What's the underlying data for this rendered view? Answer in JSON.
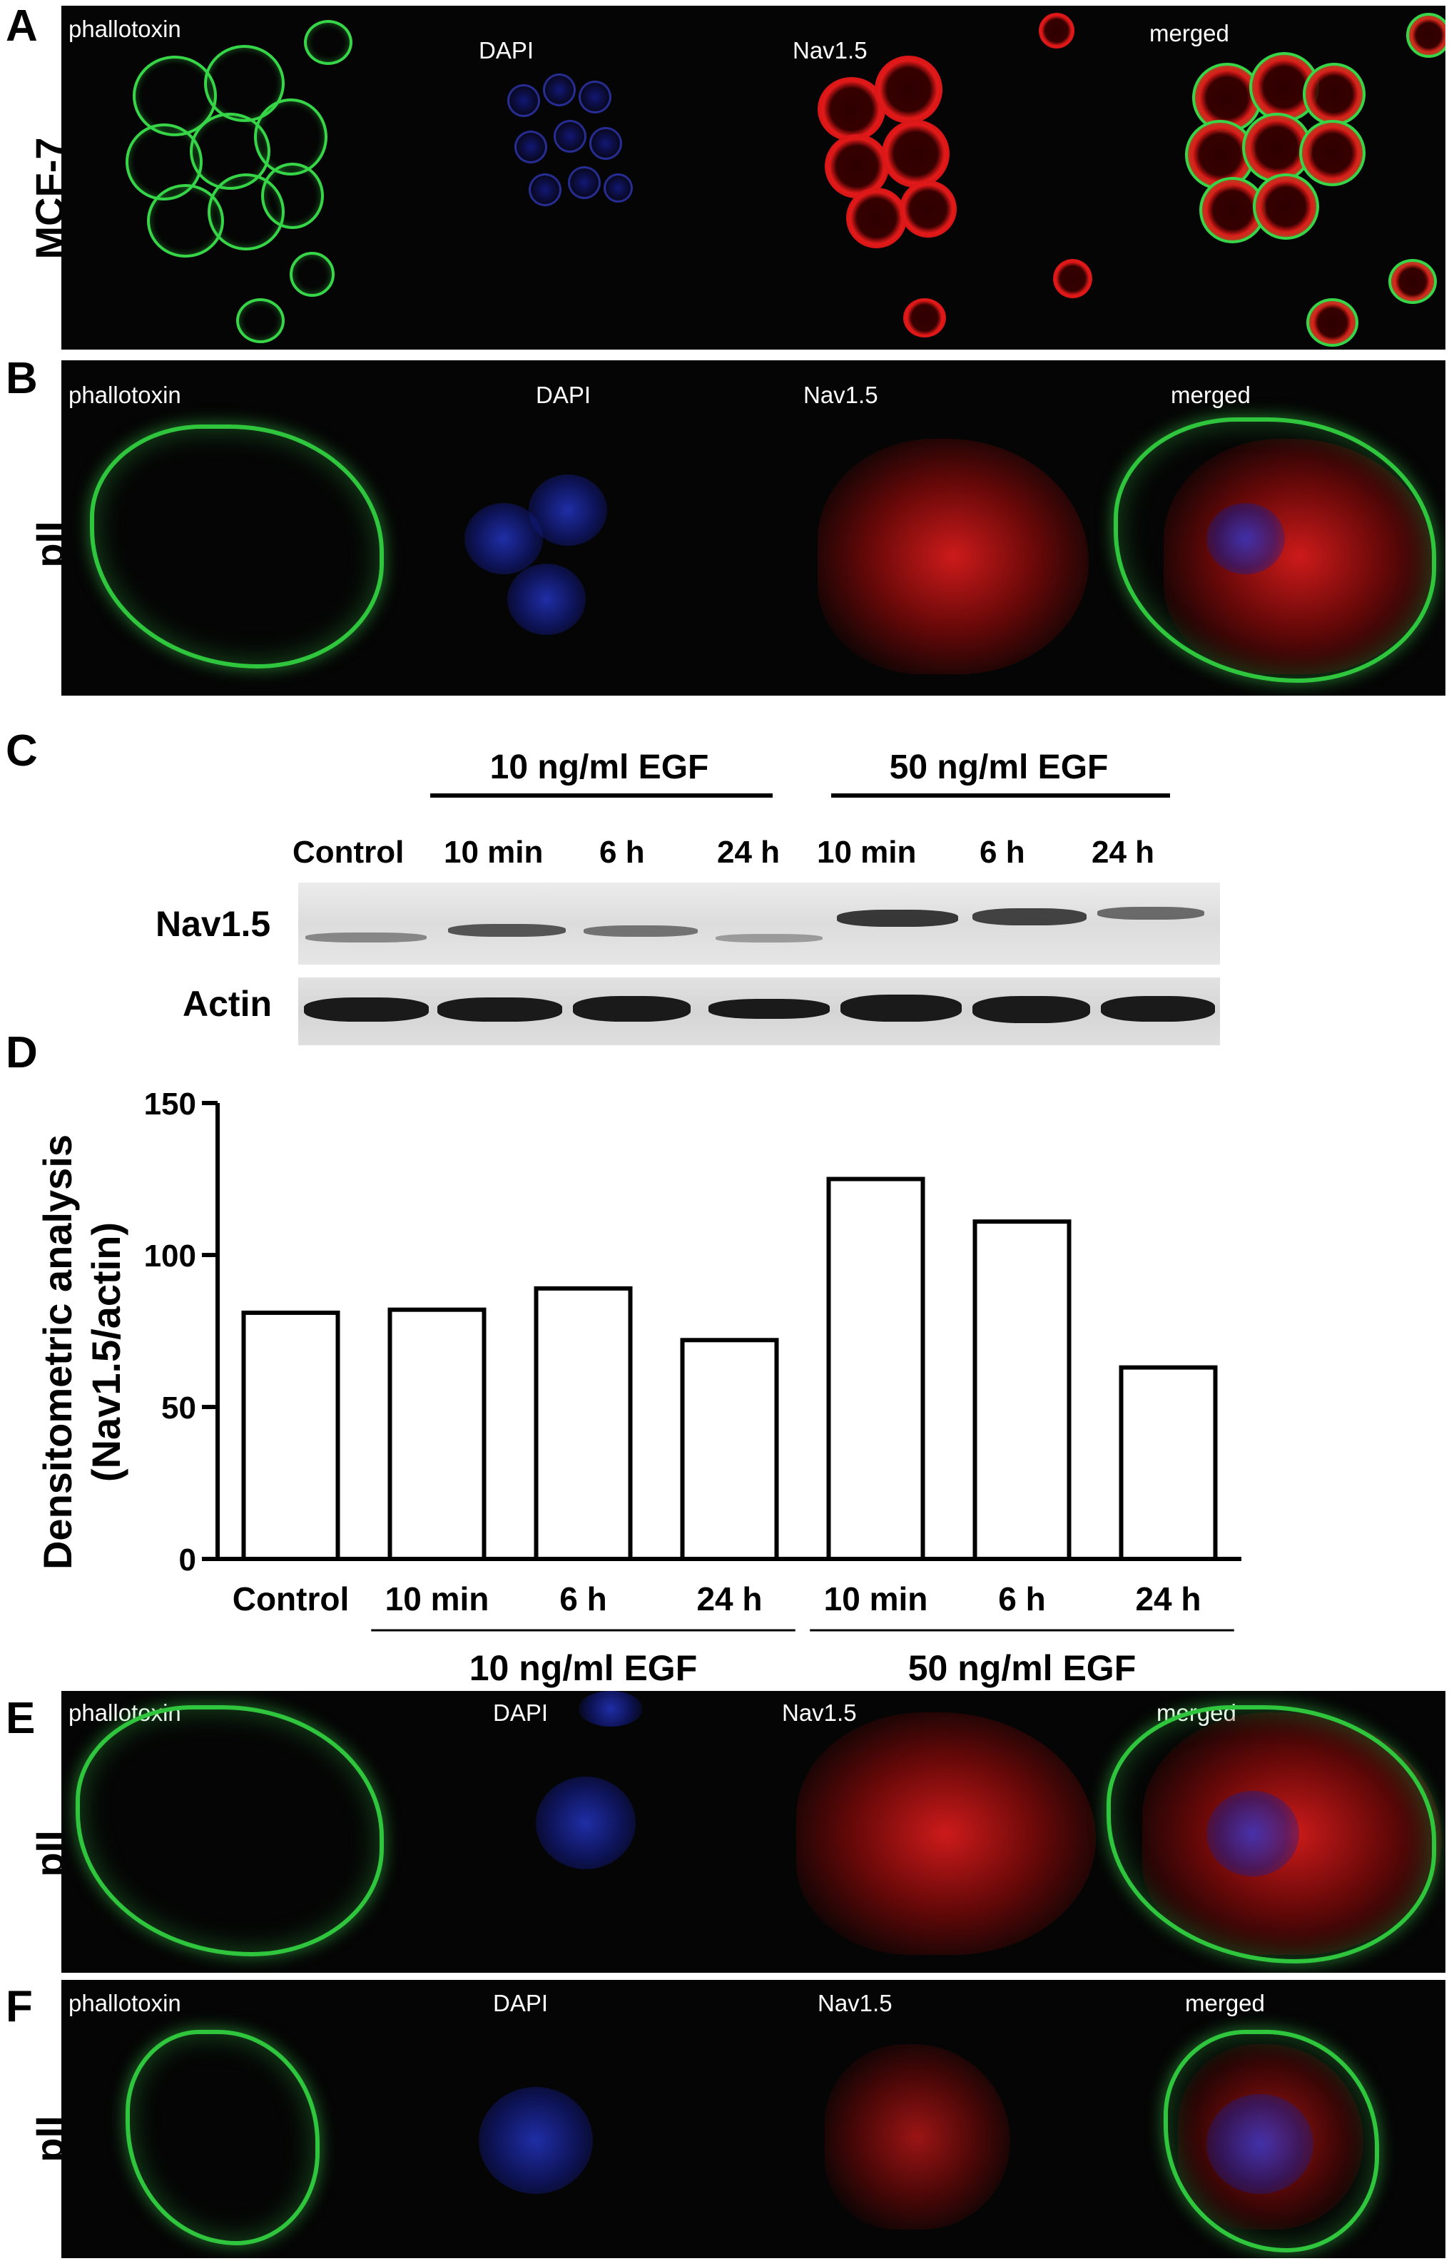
{
  "panels": {
    "A": {
      "letter": "A",
      "row_label": "MCF-7",
      "channels": [
        "phallotoxin",
        "DAPI",
        "Nav1.5",
        "merged"
      ]
    },
    "B": {
      "letter": "B",
      "row_label": "pII",
      "channels": [
        "phallotoxin",
        "DAPI",
        "Nav1.5",
        "merged"
      ]
    },
    "E": {
      "letter": "E",
      "row_label": "pII",
      "channels": [
        "phallotoxin",
        "DAPI",
        "Nav1.5",
        "merged"
      ]
    },
    "F": {
      "letter": "F",
      "row_label": "pII",
      "channels": [
        "phallotoxin",
        "DAPI",
        "Nav1.5",
        "merged"
      ]
    }
  },
  "western_blot": {
    "letter": "C",
    "group_10": "10 ng/ml EGF",
    "group_50": "50 ng/ml EGF",
    "lanes": [
      "Control",
      "10 min",
      "6 h",
      "24 h",
      "10 min",
      "6 h",
      "24 h"
    ],
    "rows": [
      "Nav1.5",
      "Actin"
    ]
  },
  "chart_data": {
    "letter": "D",
    "type": "bar",
    "categories": [
      "Control",
      "10 min",
      "6 h",
      "24 h",
      "10 min",
      "6 h",
      "24 h"
    ],
    "values": [
      81,
      82,
      89,
      72,
      125,
      111,
      63
    ],
    "groups": [
      {
        "label": "10 ng/ml EGF",
        "from": 1,
        "to": 3
      },
      {
        "label": "50 ng/ml EGF",
        "from": 4,
        "to": 6
      }
    ],
    "ylabel_line1": "Densitometric analysis",
    "ylabel_line2": "(Nav1.5/actin)",
    "ylim": [
      0,
      150
    ],
    "yticks": [
      0,
      50,
      100,
      150
    ],
    "bar_fill": "#ffffff",
    "bar_stroke": "#000000"
  }
}
